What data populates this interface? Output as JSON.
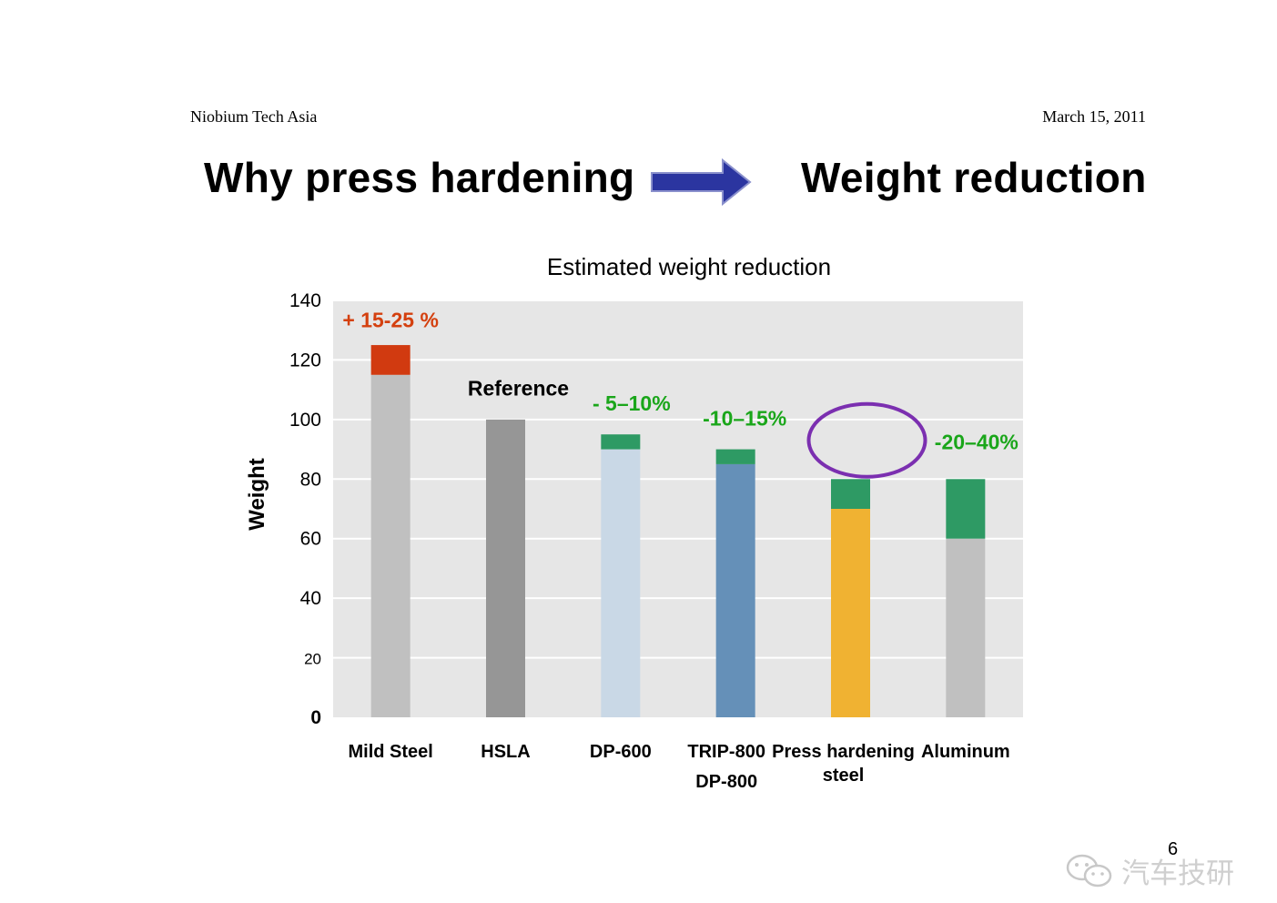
{
  "header": {
    "org": "Niobium Tech Asia",
    "date": "March 15,  2011"
  },
  "slide": {
    "title_left": "Why press hardening",
    "title_right": "Weight reduction",
    "page_number": "6"
  },
  "watermark": {
    "text": "汽车技研",
    "icon": "wechat-icon"
  },
  "colors": {
    "arrow": "#2b35a0",
    "plot_bg": "#e6e6e6",
    "reduction_green": "#2e9a64",
    "increase_red": "#d13a10",
    "label_red": "#d4400f",
    "label_green": "#1aa61a",
    "circle": "#7b2fb0"
  },
  "chart_data": {
    "type": "bar",
    "title": "Estimated weight reduction",
    "ylabel": "Weight",
    "ylim": [
      0,
      140
    ],
    "yticks": [
      0,
      20,
      40,
      60,
      80,
      100,
      120,
      140
    ],
    "grid": true,
    "categories": [
      {
        "label": "Mild Steel",
        "label2": ""
      },
      {
        "label": "HSLA",
        "label2": ""
      },
      {
        "label": "DP-600",
        "label2": ""
      },
      {
        "label": "TRIP-800",
        "label2": "DP-800"
      },
      {
        "label": "Press hardening",
        "label2": "steel"
      },
      {
        "label": "Aluminum",
        "label2": ""
      }
    ],
    "bars": [
      {
        "base": 115,
        "base_color": "#c0c0c0",
        "top": 125,
        "top_color": "#d13a10"
      },
      {
        "base": 100,
        "base_color": "#969696",
        "top": null,
        "top_color": null
      },
      {
        "base": 90,
        "base_color": "#c9d8e6",
        "top": 95,
        "top_color": "#2e9a64"
      },
      {
        "base": 85,
        "base_color": "#6590b8",
        "top": 90,
        "top_color": "#2e9a64"
      },
      {
        "base": 70,
        "base_color": "#f0b232",
        "top": 80,
        "top_color": "#2e9a64"
      },
      {
        "base": 60,
        "base_color": "#c0c0c0",
        "top": 80,
        "top_color": "#2e9a64"
      }
    ],
    "annotations": [
      {
        "text": "+ 15-25 %",
        "category": 0,
        "y": 131,
        "color": "#d4400f"
      },
      {
        "text": "Reference",
        "category": 1,
        "y": 108,
        "color": "#000000"
      },
      {
        "text": "- 5–10%",
        "category": 2,
        "y": 103,
        "color": "#1aa61a"
      },
      {
        "text": "-10–15%",
        "category": 3,
        "y": 98,
        "color": "#1aa61a"
      },
      {
        "text": "-20–40%",
        "category": 5,
        "y": 90,
        "color": "#1aa61a"
      }
    ],
    "highlight": {
      "shape": "ellipse",
      "category": 4,
      "y": 93
    }
  }
}
